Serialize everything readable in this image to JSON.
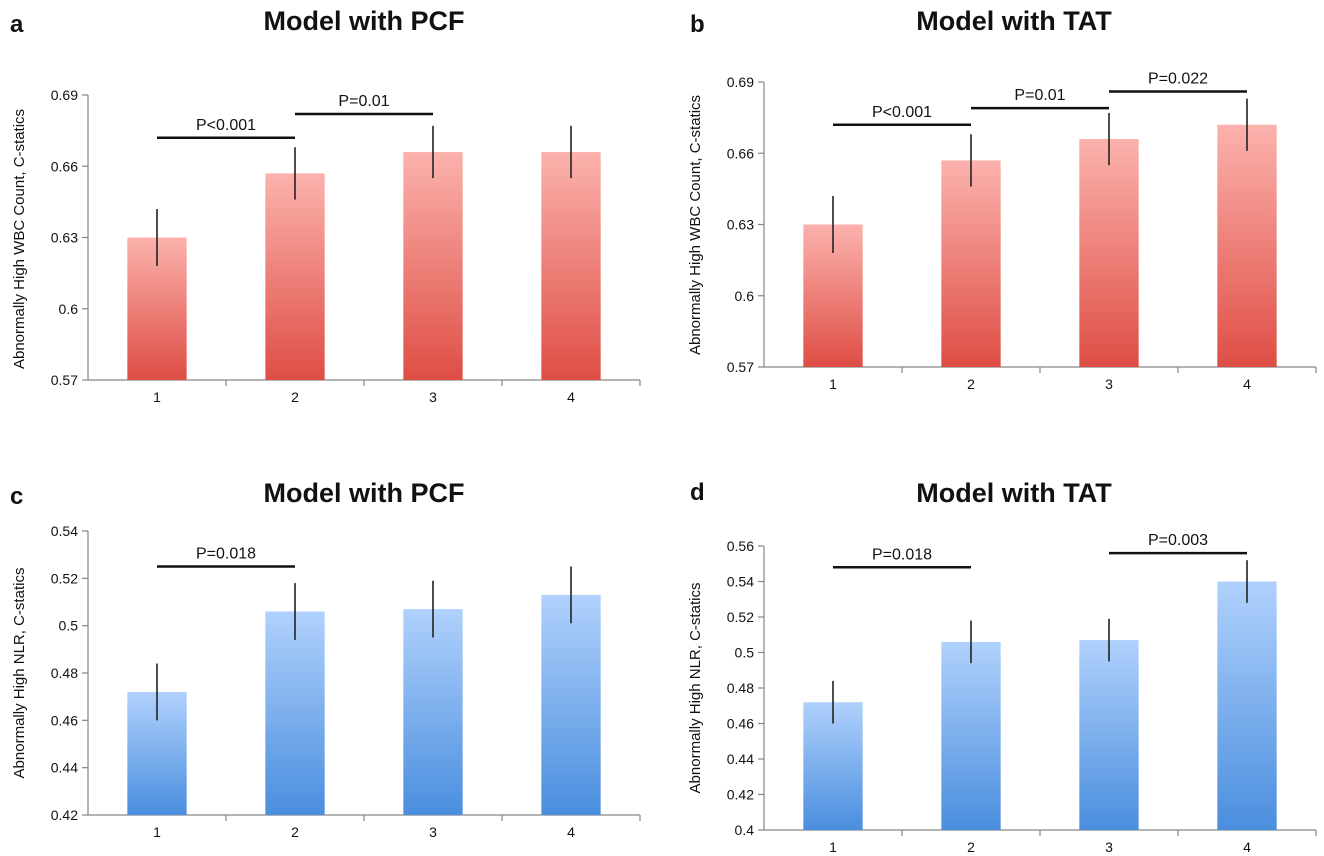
{
  "colors": {
    "red_top": "#fcb2ad",
    "red_bottom": "#de4e45",
    "blue_top": "#b0d1fc",
    "blue_bottom": "#4a8ede"
  },
  "chart_data": [
    {
      "type": "bar",
      "panel": "a",
      "title": "Model with PCF",
      "ylabel": "Abnormally High WBC Count, C-statics",
      "xlabel": "",
      "categories": [
        "1",
        "2",
        "3",
        "4"
      ],
      "values": [
        0.63,
        0.657,
        0.666,
        0.666
      ],
      "errors": [
        0.012,
        0.011,
        0.011,
        0.011
      ],
      "ylim": [
        0.57,
        0.69
      ],
      "yticks": [
        0.57,
        0.6,
        0.63,
        0.66,
        0.69
      ],
      "ytick_labels": [
        "0.57",
        "0.6",
        "0.63",
        "0.66",
        "0.69"
      ],
      "color": "red",
      "comparisons": [
        {
          "from": 0,
          "to": 1,
          "y": 0.672,
          "label": "P<0.001"
        },
        {
          "from": 1,
          "to": 2,
          "y": 0.682,
          "label": "P=0.01"
        }
      ]
    },
    {
      "type": "bar",
      "panel": "b",
      "title": "Model with TAT",
      "ylabel": "Abnormally High WBC Count, C-statics",
      "xlabel": "",
      "categories": [
        "1",
        "2",
        "3",
        "4"
      ],
      "values": [
        0.63,
        0.657,
        0.666,
        0.672
      ],
      "errors": [
        0.012,
        0.011,
        0.011,
        0.011
      ],
      "ylim": [
        0.57,
        0.69
      ],
      "yticks": [
        0.57,
        0.6,
        0.63,
        0.66,
        0.69
      ],
      "ytick_labels": [
        "0.57",
        "0.6",
        "0.63",
        "0.66",
        "0.69"
      ],
      "color": "red",
      "comparisons": [
        {
          "from": 0,
          "to": 1,
          "y": 0.672,
          "label": "P<0.001"
        },
        {
          "from": 1,
          "to": 2,
          "y": 0.679,
          "label": "P=0.01"
        },
        {
          "from": 2,
          "to": 3,
          "y": 0.686,
          "label": "P=0.022"
        }
      ]
    },
    {
      "type": "bar",
      "panel": "c",
      "title": "Model with PCF",
      "ylabel": "Abnormally High NLR, C-statics",
      "xlabel": "",
      "categories": [
        "1",
        "2",
        "3",
        "4"
      ],
      "values": [
        0.472,
        0.506,
        0.507,
        0.513
      ],
      "errors": [
        0.012,
        0.012,
        0.012,
        0.012
      ],
      "ylim": [
        0.42,
        0.54
      ],
      "yticks": [
        0.42,
        0.44,
        0.46,
        0.48,
        0.5,
        0.52,
        0.54
      ],
      "ytick_labels": [
        "0.42",
        "0.44",
        "0.46",
        "0.48",
        "0.5",
        "0.52",
        "0.54"
      ],
      "color": "blue",
      "comparisons": [
        {
          "from": 0,
          "to": 1,
          "y": 0.525,
          "label": "P=0.018"
        }
      ]
    },
    {
      "type": "bar",
      "panel": "d",
      "title": "Model with TAT",
      "ylabel": "Abnormally High NLR, C-statics",
      "xlabel": "",
      "categories": [
        "1",
        "2",
        "3",
        "4"
      ],
      "values": [
        0.472,
        0.506,
        0.507,
        0.54
      ],
      "errors": [
        0.012,
        0.012,
        0.012,
        0.012
      ],
      "ylim": [
        0.4,
        0.56
      ],
      "yticks": [
        0.4,
        0.42,
        0.44,
        0.46,
        0.48,
        0.5,
        0.52,
        0.54,
        0.56
      ],
      "ytick_labels": [
        "0.4",
        "0.42",
        "0.44",
        "0.46",
        "0.48",
        "0.5",
        "0.52",
        "0.54",
        "0.56"
      ],
      "color": "blue",
      "comparisons": [
        {
          "from": 0,
          "to": 1,
          "y": 0.548,
          "label": "P=0.018"
        },
        {
          "from": 2,
          "to": 3,
          "y": 0.556,
          "label": "P=0.003"
        }
      ]
    }
  ]
}
